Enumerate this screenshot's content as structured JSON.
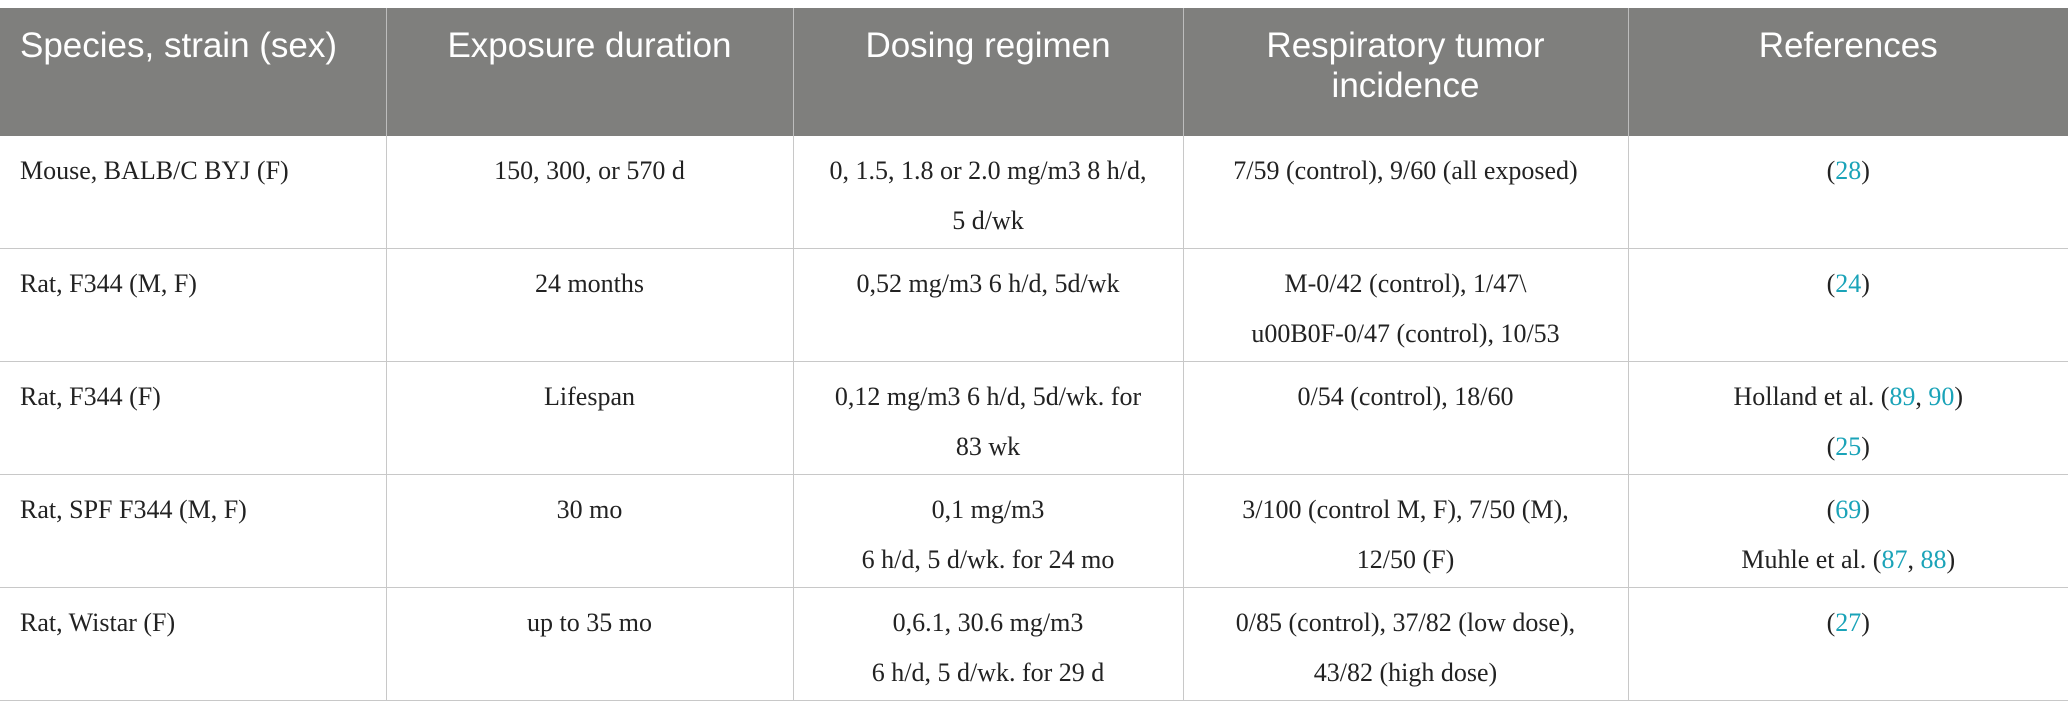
{
  "table": {
    "header": [
      "Species, strain (sex)",
      "Exposure duration",
      "Dosing regimen",
      "Respiratory tumor incidence",
      "References"
    ],
    "rows": [
      [
        [
          "Mouse, BALB/C BYJ (F)"
        ],
        [
          "150, 300, or 570 d"
        ],
        [
          "0, 1.5, 1.8 or 2.0 mg/m3 8 h/d,",
          "5 d/wk"
        ],
        [
          "7/59 (control), 9/60 (all exposed)"
        ],
        [
          [
            "(",
            "28",
            ")"
          ]
        ]
      ],
      [
        [
          "Rat, F344 (M, F)"
        ],
        [
          "24 months"
        ],
        [
          "0,52 mg/m3 6 h/d, 5d/wk"
        ],
        [
          "M-0/42 (control), 1/47\\",
          "u00B0F-0/47 (control), 10/53"
        ],
        [
          [
            "(",
            "24",
            ")"
          ]
        ]
      ],
      [
        [
          "Rat, F344 (F)"
        ],
        [
          "Lifespan"
        ],
        [
          "0,12 mg/m3 6 h/d, 5d/wk. for",
          "83 wk"
        ],
        [
          "0/54 (control), 18/60"
        ],
        [
          [
            "Holland et al. (",
            "89",
            ", ",
            "90",
            ")"
          ],
          [
            "(",
            "25",
            ")"
          ]
        ]
      ],
      [
        [
          "Rat, SPF F344 (M, F)"
        ],
        [
          "30 mo"
        ],
        [
          "0,1 mg/m3",
          "6 h/d, 5 d/wk. for 24 mo"
        ],
        [
          "3/100 (control M, F), 7/50 (M),",
          "12/50 (F)"
        ],
        [
          [
            "(",
            "69",
            ")"
          ],
          [
            "Muhle et al. (",
            "87",
            ", ",
            "88",
            ")"
          ]
        ]
      ],
      [
        [
          "Rat, Wistar (F)"
        ],
        [
          "up to 35 mo"
        ],
        [
          "0,6.1, 30.6 mg/m3",
          "6 h/d, 5 d/wk. for 29 d"
        ],
        [
          "0/85 (control), 37/82 (low dose),",
          "43/82 (high dose)"
        ],
        [
          [
            "(",
            "27",
            ")"
          ]
        ]
      ]
    ]
  }
}
